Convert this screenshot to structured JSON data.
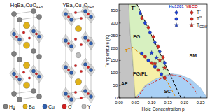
{
  "structures": [
    {
      "formula": "HgBa2CuO4+δ",
      "layers": [
        "Hg",
        "Ba",
        "Cu",
        "Ba",
        "Hg",
        "Ba",
        "Cu",
        "Ba",
        "Hg"
      ]
    },
    {
      "formula": "YBa2Cu3O6+δ",
      "layers": [
        "Cu",
        "Ba",
        "Cu",
        "Y",
        "Cu",
        "Ba",
        "Cu"
      ]
    }
  ],
  "atoms": [
    {
      "label": "Hg",
      "color": "#7f7f7f"
    },
    {
      "label": "Ba",
      "color": "#e0b21a"
    },
    {
      "label": "Cu",
      "color": "#2f5fb0"
    },
    {
      "label": "O",
      "color": "#d62020"
    },
    {
      "label": "Y",
      "color": "#bdbdbd"
    }
  ],
  "chart_data": {
    "type": "scatter",
    "xlabel": "Hole Concentration p",
    "ylabel": "Temperature (K)",
    "xlim": [
      0,
      0.27
    ],
    "ylim": [
      0,
      375
    ],
    "xticks": [
      {
        "value": 0,
        "label": "0.00"
      },
      0.05,
      {
        "value": 0.1,
        "label": "0.10"
      },
      0.15,
      {
        "value": 0.2,
        "label": "0.20"
      },
      0.25
    ],
    "yticks": [
      0,
      50,
      100,
      150,
      200,
      250,
      300,
      350
    ],
    "regions": [
      {
        "label": "SM",
        "color": "#ffffff",
        "x": [
          0.055,
          0.27,
          0.27,
          0.19
        ],
        "values": [
          375,
          375,
          0,
          0
        ]
      },
      {
        "label": "AF",
        "color": "#c4c4c4",
        "x": [
          0,
          0.03,
          0.035,
          0.045,
          0.05,
          0
        ],
        "values": [
          375,
          375,
          250,
          100,
          0,
          0
        ]
      },
      {
        "label": "PG",
        "color": "#d7f0c0",
        "x": [
          0.03,
          0.055,
          0.19,
          0.05,
          0.045,
          0.035
        ],
        "values": [
          375,
          375,
          0,
          0,
          100,
          250
        ]
      },
      {
        "label": "PG/FL",
        "color": "#f6f0a8",
        "x": [
          0.04,
          0.08,
          0.12,
          0.15,
          0.175,
          0.05,
          0.045
        ],
        "values": [
          205,
          160,
          110,
          60,
          0,
          0,
          100
        ]
      },
      {
        "label": "SC",
        "color": "#a9d0f5",
        "x": [
          0.05,
          0.08,
          0.11,
          0.14,
          0.16,
          0.19,
          0.22,
          0.25,
          0.27
        ],
        "values": [
          0,
          50,
          75,
          90,
          97,
          92,
          75,
          40,
          0
        ]
      }
    ],
    "curves": [
      {
        "label": "T*",
        "color": "#000000",
        "line_style": "dashed",
        "x": [
          0.055,
          0.19
        ],
        "values": [
          375,
          0
        ]
      },
      {
        "label": "T**",
        "color": "#e08a00",
        "line_style": "dashed",
        "x": [
          0.04,
          0.08,
          0.12,
          0.15,
          0.175
        ],
        "values": [
          205,
          160,
          110,
          60,
          0
        ]
      },
      {
        "color": "#d42a1e",
        "line_style": "dashed",
        "x": [
          0.055,
          0.08,
          0.11,
          0.14,
          0.16,
          0.19,
          0.22,
          0.24
        ],
        "values": [
          0,
          45,
          65,
          85,
          93,
          85,
          55,
          15
        ]
      }
    ],
    "groups": [
      {
        "label": "Hg1201",
        "color": "#1c3fd6",
        "series": [
          {
            "name": "T*",
            "marker": "diamond",
            "x": [
              0.065,
              0.08,
              0.095,
              0.11,
              0.125,
              0.14
            ],
            "values": [
              340,
              300,
              262,
              222,
              185,
              140
            ]
          },
          {
            "name": "T**",
            "marker": "circle",
            "x": [
              0.07,
              0.09,
              0.11,
              0.13
            ],
            "values": [
              178,
              150,
              125,
              95
            ]
          },
          {
            "name": "TCDW",
            "marker": "star",
            "x": [
              0.1,
              0.115
            ],
            "values": [
              180,
              160
            ]
          }
        ]
      },
      {
        "label": "YBCO",
        "color": "#d42a1e",
        "series": [
          {
            "name": "T*",
            "marker": "diamond",
            "x": [
              0.07,
              0.09,
              0.105,
              0.12,
              0.135
            ],
            "values": [
              320,
              282,
              244,
              205,
              162
            ]
          },
          {
            "name": "T**",
            "marker": "circle",
            "x": [
              0.08,
              0.1,
              0.12,
              0.14
            ],
            "values": [
              165,
              140,
              112,
              80
            ]
          },
          {
            "name": "TCDW",
            "marker": "star",
            "x": [
              0.11,
              0.125,
              0.14
            ],
            "values": [
              138,
              150,
              120
            ]
          }
        ]
      }
    ]
  }
}
